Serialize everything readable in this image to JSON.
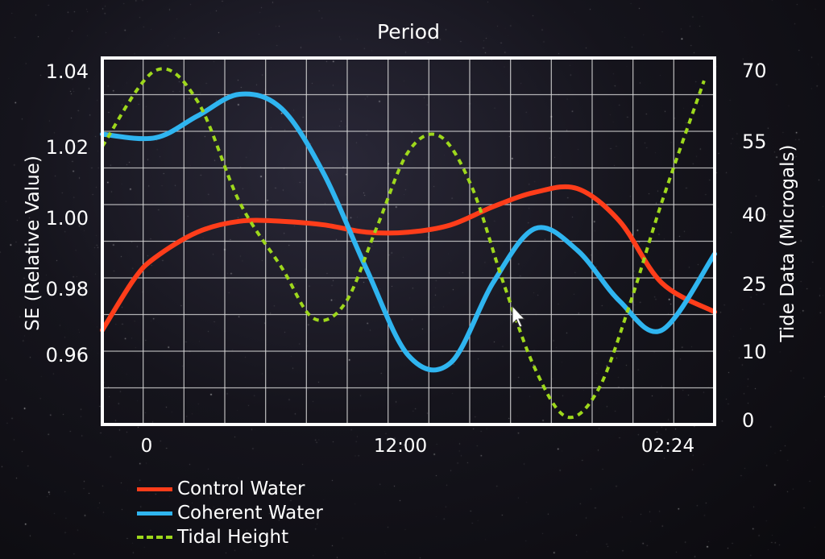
{
  "chart_data": {
    "type": "line",
    "title": "Period",
    "xlabel": "",
    "ylabel": "SE (Relative Value)",
    "y2label": "Tide Data (Microgals)",
    "x_ticks": [
      "0",
      "12:00",
      "02:24"
    ],
    "y_ticks": [
      "1.04",
      "1.02",
      "1.00",
      "0.98",
      "0.96"
    ],
    "y2_ticks": [
      "70",
      "55",
      "40",
      "25",
      "10",
      "0"
    ],
    "xlim": [
      -2.5,
      26.5
    ],
    "ylim": [
      0.944,
      1.045
    ],
    "y2lim": [
      0,
      72.5
    ],
    "grid": true,
    "legend_position": "bottom-left",
    "series": [
      {
        "name": "Control Water",
        "axis": "left",
        "color": "#ff3d1a",
        "style": "solid",
        "x": [
          -2.5,
          -1,
          0,
          2,
          4,
          6,
          8,
          10,
          12,
          14,
          16,
          18,
          20,
          22,
          24,
          26.5
        ],
        "y": [
          0.97,
          0.984,
          0.99,
          0.997,
          1.0,
          1.0,
          0.999,
          0.997,
          0.997,
          0.999,
          1.004,
          1.008,
          1.009,
          1.0,
          0.983,
          0.975
        ]
      },
      {
        "name": "Coherent Water",
        "axis": "left",
        "color": "#2fb5f0",
        "style": "solid",
        "x": [
          -2.5,
          0,
          2,
          4,
          6,
          8,
          10,
          12,
          14,
          16,
          18,
          20,
          22,
          24,
          26.5
        ],
        "y": [
          1.024,
          1.023,
          1.029,
          1.035,
          1.031,
          1.013,
          0.987,
          0.963,
          0.961,
          0.983,
          0.998,
          0.992,
          0.978,
          0.97,
          0.991
        ]
      },
      {
        "name": "Tidal Height",
        "axis": "right",
        "color": "#9ed81c",
        "style": "dashed",
        "x": [
          -2.5,
          0,
          2,
          4,
          6,
          7.5,
          9,
          10.5,
          12,
          13.5,
          15,
          16.5,
          18,
          19.5,
          21,
          22.5,
          24,
          26
        ],
        "y": [
          55,
          70,
          64,
          44,
          31,
          21,
          24,
          39,
          54,
          57,
          47,
          28,
          11,
          1.5,
          7,
          24,
          44,
          68
        ]
      }
    ]
  }
}
